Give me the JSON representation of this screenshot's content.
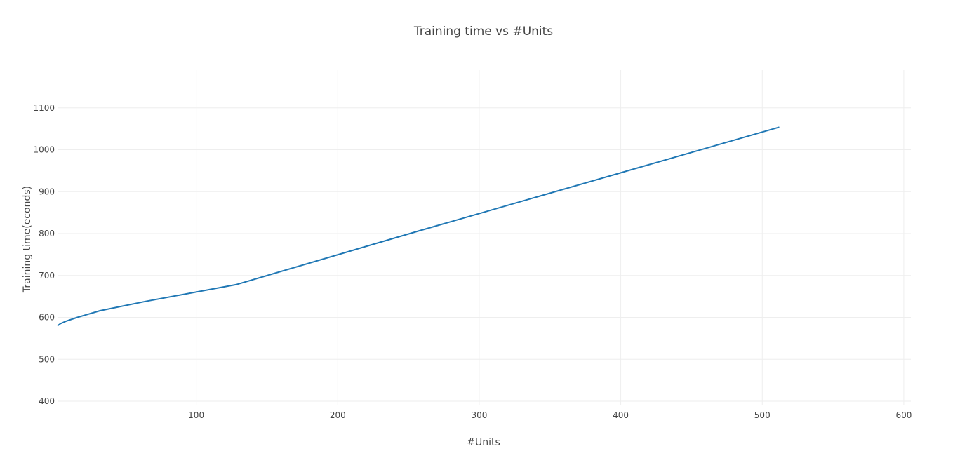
{
  "chart_data": {
    "type": "line",
    "title": "Training time vs #Units",
    "xlabel": "#Units",
    "ylabel": "Training time(econds)",
    "xlim": [
      2,
      605
    ],
    "ylim": [
      390,
      1190
    ],
    "xticks": [
      100,
      200,
      300,
      400,
      500,
      600
    ],
    "yticks": [
      400,
      500,
      600,
      700,
      800,
      900,
      1000,
      1100
    ],
    "grid": true,
    "series": [
      {
        "color": "#1f77b4",
        "x": [
          2,
          4,
          8,
          16,
          32,
          64,
          128,
          256,
          512
        ],
        "y": [
          580,
          585,
          591,
          600,
          616,
          638,
          678,
          805,
          1054
        ]
      }
    ]
  }
}
